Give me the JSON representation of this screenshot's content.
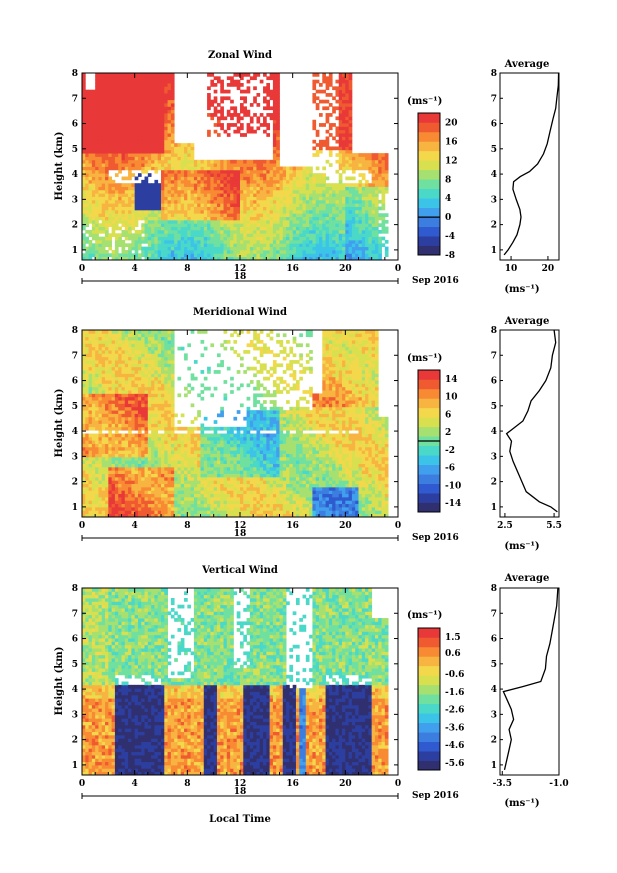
{
  "x_axis": {
    "ticks": [
      "0",
      "4",
      "8",
      "12",
      "16",
      "20",
      "0"
    ],
    "day_label": "18",
    "month_label": "Sep 2016",
    "xlabel": "Local Time"
  },
  "chart_data": [
    {
      "type": "heatmap",
      "title": "Zonal Wind",
      "ylabel": "Height (km)",
      "xlim": [
        0,
        24
      ],
      "ylim": [
        0.6,
        8.0
      ],
      "yticks": [
        "1",
        "2",
        "3",
        "4",
        "5",
        "6",
        "7",
        "8"
      ],
      "colorbar": {
        "unit": "(ms⁻¹)",
        "min": -8,
        "max": 22,
        "zero_line": 0,
        "ticks": [
          "20",
          "16",
          "12",
          "8",
          "4",
          "0",
          "-4",
          "-8"
        ],
        "tick_values": [
          20,
          16,
          12,
          8,
          4,
          0,
          -4,
          -8
        ],
        "colors": [
          "#303070",
          "#2c3ea0",
          "#2f5ad0",
          "#3c7ee0",
          "#41a0ee",
          "#3cc4e8",
          "#4ad8c8",
          "#70e0a0",
          "#a6e070",
          "#d8e050",
          "#f4d84c",
          "#f8b440",
          "#f88a34",
          "#f05a30",
          "#e83838"
        ]
      },
      "profile": {
        "title": "Average",
        "xlabel": "(ms⁻¹)",
        "xlim": [
          7,
          23
        ],
        "xticks": [
          "10",
          "20"
        ],
        "xtick_values": [
          10,
          20
        ],
        "points": [
          [
            8.1,
            0.8
          ],
          [
            9.2,
            1.0
          ],
          [
            10.5,
            1.3
          ],
          [
            11.6,
            1.6
          ],
          [
            12.4,
            2.0
          ],
          [
            12.7,
            2.3
          ],
          [
            12.4,
            2.6
          ],
          [
            11.4,
            3.0
          ],
          [
            10.5,
            3.4
          ],
          [
            10.7,
            3.7
          ],
          [
            12.5,
            3.9
          ],
          [
            15.0,
            4.1
          ],
          [
            17.2,
            4.4
          ],
          [
            18.8,
            4.8
          ],
          [
            19.8,
            5.2
          ],
          [
            20.6,
            5.7
          ],
          [
            21.4,
            6.2
          ],
          [
            22.1,
            6.6
          ],
          [
            22.4,
            7.0
          ],
          [
            22.8,
            7.5
          ],
          [
            22.9,
            8.0
          ]
        ]
      }
    },
    {
      "type": "heatmap",
      "title": "Meridional Wind",
      "ylabel": "Height (km)",
      "xlim": [
        0,
        24
      ],
      "ylim": [
        0.6,
        8.0
      ],
      "yticks": [
        "1",
        "2",
        "3",
        "4",
        "5",
        "6",
        "7",
        "8"
      ],
      "colorbar": {
        "unit": "(ms⁻¹)",
        "min": -16,
        "max": 16,
        "zero_line": 0,
        "ticks": [
          "14",
          "10",
          "6",
          "2",
          "-2",
          "-6",
          "-10",
          "-14"
        ],
        "tick_values": [
          14,
          10,
          6,
          2,
          -2,
          -6,
          -10,
          -14
        ],
        "colors": [
          "#303070",
          "#2c3ea0",
          "#2f5ad0",
          "#3c7ee0",
          "#41a0ee",
          "#3cc4e8",
          "#4ad8c8",
          "#70e0a0",
          "#a6e070",
          "#d8e050",
          "#f4d84c",
          "#f8b440",
          "#f88a34",
          "#f05a30",
          "#e83838"
        ]
      },
      "profile": {
        "title": "Average",
        "xlabel": "(ms⁻¹)",
        "xlim": [
          2.2,
          5.8
        ],
        "xticks": [
          "2.5",
          "5.5"
        ],
        "xtick_values": [
          2.5,
          5.5
        ],
        "points": [
          [
            5.7,
            0.8
          ],
          [
            5.3,
            1.0
          ],
          [
            4.6,
            1.2
          ],
          [
            3.8,
            1.6
          ],
          [
            3.4,
            2.2
          ],
          [
            3.0,
            2.8
          ],
          [
            2.8,
            3.2
          ],
          [
            2.9,
            3.6
          ],
          [
            2.6,
            3.9
          ],
          [
            3.0,
            4.1
          ],
          [
            3.6,
            4.4
          ],
          [
            3.9,
            4.8
          ],
          [
            4.1,
            5.2
          ],
          [
            4.6,
            5.6
          ],
          [
            5.0,
            6.0
          ],
          [
            5.3,
            6.5
          ],
          [
            5.4,
            7.0
          ],
          [
            5.6,
            7.5
          ],
          [
            5.5,
            8.0
          ]
        ]
      }
    },
    {
      "type": "heatmap",
      "title": "Vertical Wind",
      "ylabel": "Height (km)",
      "xlim": [
        0,
        24
      ],
      "ylim": [
        0.6,
        8.0
      ],
      "yticks": [
        "1",
        "2",
        "3",
        "4",
        "5",
        "6",
        "7",
        "8"
      ],
      "colorbar": {
        "unit": "(ms⁻¹)",
        "min": -6.0,
        "max": 2.0,
        "ticks": [
          "1.5",
          "0.6",
          "-0.6",
          "-1.6",
          "-2.6",
          "-3.6",
          "-4.6",
          "-5.6"
        ],
        "tick_values": [
          1.5,
          0.6,
          -0.6,
          -1.6,
          -2.6,
          -3.6,
          -4.6,
          -5.6
        ],
        "colors": [
          "#303070",
          "#2c3ea0",
          "#2f5ad0",
          "#3c7ee0",
          "#41a0ee",
          "#3cc4e8",
          "#4ad8c8",
          "#70e0a0",
          "#a6e070",
          "#d8e050",
          "#f4d84c",
          "#f8b440",
          "#f88a34",
          "#f05a30",
          "#e83838"
        ]
      },
      "profile": {
        "title": "Average",
        "xlabel": "(ms⁻¹)",
        "xlim": [
          -3.6,
          -1.0
        ],
        "xticks": [
          "-3.5",
          "-1.0"
        ],
        "xtick_values": [
          -3.5,
          -1.0
        ],
        "points": [
          [
            -3.4,
            0.8
          ],
          [
            -3.3,
            1.2
          ],
          [
            -3.2,
            1.6
          ],
          [
            -3.1,
            2.0
          ],
          [
            -3.2,
            2.4
          ],
          [
            -3.0,
            2.8
          ],
          [
            -3.1,
            3.2
          ],
          [
            -3.3,
            3.6
          ],
          [
            -3.45,
            3.9
          ],
          [
            -2.6,
            4.1
          ],
          [
            -1.8,
            4.3
          ],
          [
            -1.6,
            4.8
          ],
          [
            -1.55,
            5.3
          ],
          [
            -1.4,
            5.8
          ],
          [
            -1.3,
            6.3
          ],
          [
            -1.2,
            6.8
          ],
          [
            -1.1,
            7.3
          ],
          [
            -1.05,
            8.0
          ]
        ]
      }
    }
  ]
}
